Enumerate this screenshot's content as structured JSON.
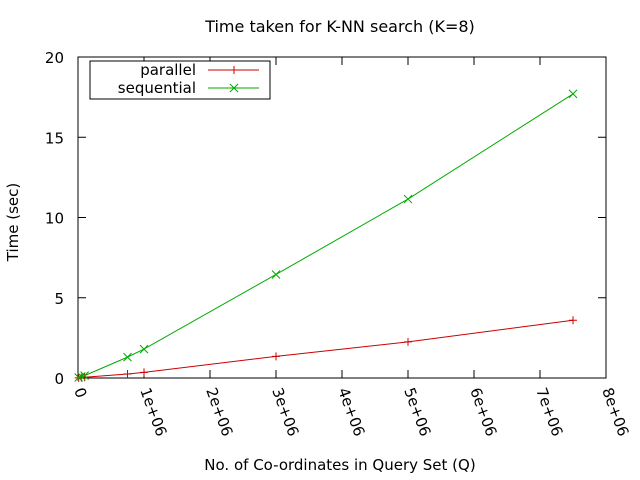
{
  "chart_data": {
    "type": "line",
    "title": "Time taken for K-NN search (K=8)",
    "xlabel": "No. of Co-ordinates in Query Set (Q)",
    "ylabel": "Time (sec)",
    "xlim": [
      0,
      8000000
    ],
    "ylim": [
      0,
      20
    ],
    "xticks": [
      0,
      1000000,
      2000000,
      3000000,
      4000000,
      5000000,
      6000000,
      7000000,
      8000000
    ],
    "xtick_labels": [
      "0",
      "1e+06",
      "2e+06",
      "3e+06",
      "4e+06",
      "5e+06",
      "6e+06",
      "7e+06",
      "8e+06"
    ],
    "yticks": [
      0,
      5,
      10,
      15,
      20
    ],
    "ytick_labels": [
      "0",
      "5",
      "10",
      "15",
      "20"
    ],
    "grid": false,
    "legend_position": "top-left",
    "series": [
      {
        "name": "parallel",
        "color": "#cc0000",
        "marker": "plus",
        "x": [
          10000,
          50000,
          100000,
          750000,
          1000000,
          3000000,
          5000000,
          7500000
        ],
        "y": [
          0.01,
          0.02,
          0.05,
          0.25,
          0.35,
          1.35,
          2.25,
          3.6
        ]
      },
      {
        "name": "sequential",
        "color": "#00aa00",
        "marker": "cross",
        "x": [
          10000,
          50000,
          100000,
          750000,
          1000000,
          3000000,
          5000000,
          7500000
        ],
        "y": [
          0.03,
          0.1,
          0.15,
          1.3,
          1.8,
          6.45,
          11.15,
          17.7
        ]
      }
    ]
  }
}
